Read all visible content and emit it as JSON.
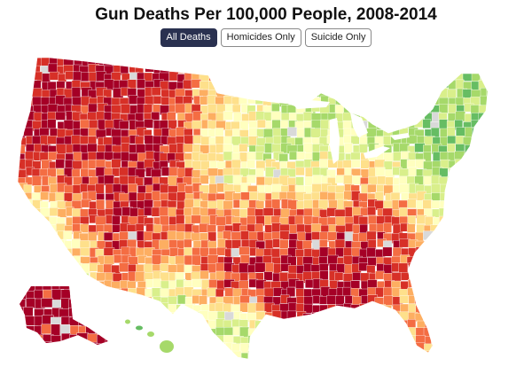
{
  "title": "Gun Deaths Per 100,000 People, 2008-2014",
  "filters": {
    "all_label": "All Deaths",
    "homicides_label": "Homicides Only",
    "suicide_label": "Suicide Only",
    "active": "all"
  },
  "map": {
    "description": "US county choropleth of gun death rates",
    "colors": {
      "very_high": "#a50026",
      "high": "#d73027",
      "elevated": "#f46d43",
      "above_avg": "#fdae61",
      "average": "#fee08b",
      "below_avg": "#ffffbf",
      "low": "#d9ef8b",
      "lower": "#a6d96a",
      "lowest": "#66bd63",
      "minimal": "#1a9850",
      "no_data": "#d9d9d9",
      "border": "#ffffff"
    }
  }
}
